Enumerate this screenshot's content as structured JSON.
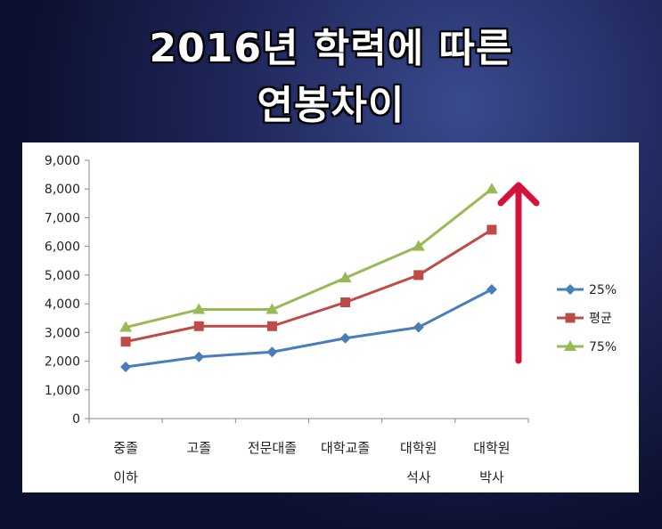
{
  "title": {
    "line1": "2016년 학력에 따른",
    "line2": "연봉차이"
  },
  "chart_data": {
    "type": "line",
    "categories": [
      "중졸\n이하",
      "고졸",
      "전문대졸",
      "대학교졸",
      "대학원\n석사",
      "대학원\n박사"
    ],
    "ylim": [
      0,
      9000
    ],
    "yticks": [
      0,
      1000,
      2000,
      3000,
      4000,
      5000,
      6000,
      7000,
      8000,
      9000
    ],
    "ytick_labels": [
      "0",
      "1,000",
      "2,000",
      "3,000",
      "4,000",
      "5,000",
      "6,000",
      "7,000",
      "8,000",
      "9,000"
    ],
    "series": [
      {
        "name": "25%",
        "color": "#4a7ebb",
        "marker": "diamond",
        "values": [
          1800,
          2150,
          2320,
          2800,
          3180,
          4500
        ]
      },
      {
        "name": "평균",
        "color": "#be4b48",
        "marker": "square",
        "values": [
          2680,
          3220,
          3220,
          4050,
          5000,
          6580
        ]
      },
      {
        "name": "75%",
        "color": "#98b954",
        "marker": "triangle",
        "values": [
          3180,
          3800,
          3800,
          4900,
          6000,
          8000
        ]
      }
    ],
    "legend_position": "right",
    "grid": false,
    "annotation": {
      "type": "arrow-up",
      "color": "#d2143a"
    }
  }
}
